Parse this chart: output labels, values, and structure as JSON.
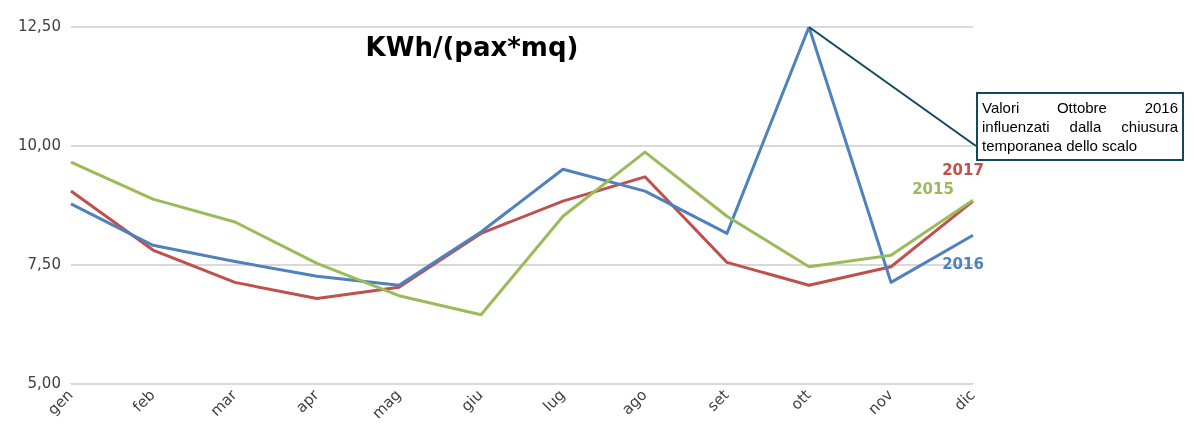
{
  "chart_data": {
    "type": "line",
    "title": "KWh/(pax*mq)",
    "categories": [
      "gen",
      "feb",
      "mar",
      "apr",
      "mag",
      "giu",
      "lug",
      "ago",
      "set",
      "ott",
      "nov",
      "dic"
    ],
    "series": [
      {
        "name": "2015",
        "color": "#9bbb59",
        "values": [
          9.66,
          8.88,
          8.4,
          7.53,
          6.85,
          6.45,
          8.52,
          9.87,
          8.52,
          7.46,
          7.7,
          8.86
        ]
      },
      {
        "name": "2016",
        "color": "#4f81bd",
        "values": [
          8.78,
          7.91,
          7.57,
          7.26,
          7.07,
          8.19,
          9.51,
          9.05,
          8.16,
          12.5,
          7.13,
          8.12
        ]
      },
      {
        "name": "2017",
        "color": "#c0504d",
        "values": [
          9.05,
          7.81,
          7.13,
          6.79,
          7.03,
          8.16,
          8.84,
          9.35,
          7.55,
          7.07,
          7.46,
          8.84
        ]
      }
    ],
    "ylim": [
      5,
      12.5
    ],
    "yticks": [
      {
        "value": 5,
        "label": "5,00"
      },
      {
        "value": 7.5,
        "label": "7,50"
      },
      {
        "value": 10,
        "label": "10,00"
      },
      {
        "value": 12.5,
        "label": "12,50"
      }
    ],
    "grid": "y",
    "legend": false,
    "marker": "none",
    "line_style": "solid",
    "annotations": [
      {
        "text": "Valori Ottobre 2016 influenzati dalla chiusura temporanea dello scalo",
        "x": "ott",
        "y": 12.5
      }
    ]
  }
}
